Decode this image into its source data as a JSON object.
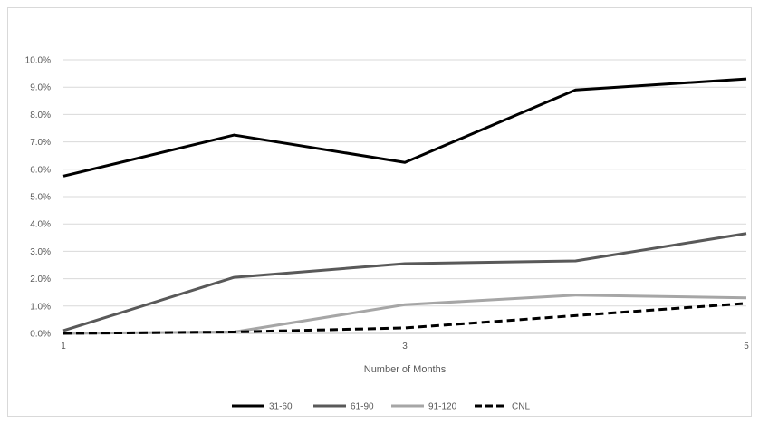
{
  "chart_data": {
    "type": "line",
    "title": "",
    "xlabel": "Number of Months",
    "ylabel": "",
    "x": [
      1,
      2,
      3,
      4,
      5
    ],
    "x_tick_labels": [
      "1",
      "3",
      "5"
    ],
    "x_tick_values": [
      1,
      3,
      5
    ],
    "ylim": [
      0,
      10
    ],
    "y_tick_values": [
      0,
      1,
      2,
      3,
      4,
      5,
      6,
      7,
      8,
      9,
      10
    ],
    "y_tick_labels": [
      "0.0%",
      "1.0%",
      "2.0%",
      "3.0%",
      "4.0%",
      "5.0%",
      "6.0%",
      "7.0%",
      "8.0%",
      "9.0%",
      "10.0%"
    ],
    "grid": true,
    "legend_position": "bottom",
    "series": [
      {
        "name": "31-60",
        "values": [
          5.75,
          7.25,
          6.25,
          8.9,
          9.3
        ],
        "color": "#000000",
        "dash": "solid"
      },
      {
        "name": "61-90",
        "values": [
          0.1,
          2.05,
          2.55,
          2.65,
          3.65
        ],
        "color": "#595959",
        "dash": "solid"
      },
      {
        "name": "91-120",
        "values": [
          0.0,
          0.05,
          1.05,
          1.4,
          1.3
        ],
        "color": "#a6a6a6",
        "dash": "solid"
      },
      {
        "name": "CNL",
        "values": [
          0.0,
          0.05,
          0.2,
          0.65,
          1.1
        ],
        "color": "#000000",
        "dash": "dashed"
      }
    ]
  }
}
